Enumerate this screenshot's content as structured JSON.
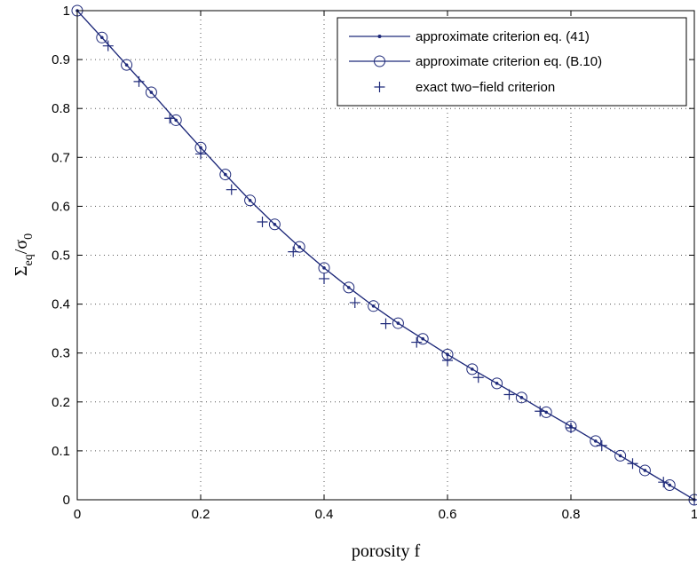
{
  "chart_data": {
    "type": "line",
    "xlabel": "porosity f",
    "ylabel_main": "Σ",
    "ylabel_sub1": "eq",
    "ylabel_slash": "/σ",
    "ylabel_sub2": "0",
    "xlim": [
      0,
      1
    ],
    "ylim": [
      0,
      1
    ],
    "xticks": [
      0,
      0.2,
      0.4,
      0.6,
      0.8,
      1
    ],
    "xtick_labels": [
      "0",
      "0.2",
      "0.4",
      "0.6",
      "0.8",
      "1"
    ],
    "yticks": [
      0,
      0.1,
      0.2,
      0.3,
      0.4,
      0.5,
      0.6,
      0.7,
      0.8,
      0.9,
      1
    ],
    "ytick_labels": [
      "0",
      "0.1",
      "0.2",
      "0.3",
      "0.4",
      "0.5",
      "0.6",
      "0.7",
      "0.8",
      "0.9",
      "1"
    ],
    "grid": true,
    "legend_position": "top-right",
    "colors": {
      "series": "#1f2a7a",
      "grid": "#555555",
      "axes": "#000000"
    },
    "series": [
      {
        "name": "approximate criterion eq. (41)",
        "marker": "point-line",
        "x": [
          0,
          0.04,
          0.08,
          0.12,
          0.16,
          0.2,
          0.24,
          0.28,
          0.32,
          0.36,
          0.4,
          0.44,
          0.48,
          0.52,
          0.56,
          0.6,
          0.64,
          0.68,
          0.72,
          0.76,
          0.8,
          0.84,
          0.88,
          0.92,
          0.96,
          1.0
        ],
        "y": [
          1.0,
          0.945,
          0.889,
          0.833,
          0.776,
          0.72,
          0.665,
          0.612,
          0.563,
          0.517,
          0.474,
          0.434,
          0.396,
          0.361,
          0.329,
          0.297,
          0.267,
          0.238,
          0.209,
          0.179,
          0.15,
          0.12,
          0.09,
          0.06,
          0.03,
          0.0
        ]
      },
      {
        "name": "approximate criterion eq. (B.10)",
        "marker": "circle-line",
        "x": [
          0,
          0.04,
          0.08,
          0.12,
          0.16,
          0.2,
          0.24,
          0.28,
          0.32,
          0.36,
          0.4,
          0.44,
          0.48,
          0.52,
          0.56,
          0.6,
          0.64,
          0.68,
          0.72,
          0.76,
          0.8,
          0.84,
          0.88,
          0.92,
          0.96,
          1.0
        ],
        "y": [
          1.0,
          0.945,
          0.889,
          0.833,
          0.776,
          0.72,
          0.665,
          0.612,
          0.563,
          0.517,
          0.474,
          0.434,
          0.396,
          0.361,
          0.329,
          0.297,
          0.267,
          0.238,
          0.209,
          0.179,
          0.15,
          0.12,
          0.09,
          0.06,
          0.03,
          0.0
        ]
      },
      {
        "name": "exact two−field criterion",
        "marker": "plus",
        "x": [
          0.05,
          0.1,
          0.15,
          0.2,
          0.25,
          0.3,
          0.35,
          0.4,
          0.45,
          0.5,
          0.55,
          0.6,
          0.65,
          0.7,
          0.75,
          0.8,
          0.85,
          0.9,
          0.95,
          1.0
        ],
        "y": [
          0.928,
          0.855,
          0.78,
          0.707,
          0.634,
          0.568,
          0.507,
          0.452,
          0.403,
          0.36,
          0.322,
          0.285,
          0.25,
          0.215,
          0.181,
          0.147,
          0.111,
          0.074,
          0.036,
          0.0
        ]
      }
    ]
  }
}
